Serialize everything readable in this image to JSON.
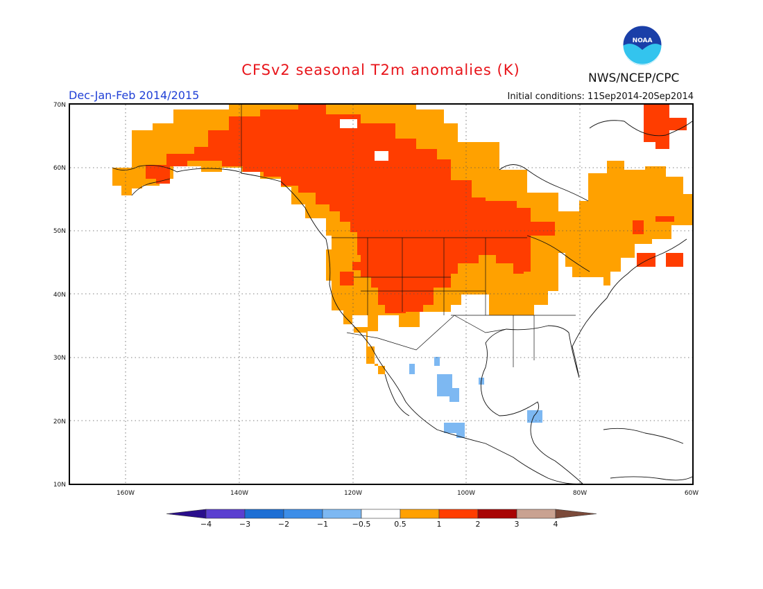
{
  "header": {
    "title": "CFSv2 seasonal T2m anomalies (K)",
    "period": "Dec-Jan-Feb 2014/2015",
    "initial_conditions": "Initial conditions: 11Sep2014-20Sep2014",
    "agency": "NWS/NCEP/CPC",
    "logo_text": "NOAA"
  },
  "map": {
    "lat_labels": [
      "70N",
      "60N",
      "50N",
      "40N",
      "30N",
      "20N",
      "10N"
    ],
    "lon_labels": [
      "160W",
      "140W",
      "120W",
      "100W",
      "80W",
      "60W"
    ]
  },
  "colorbar": {
    "labels": [
      "-4",
      "-3",
      "-2",
      "-1",
      "-0.5",
      "0.5",
      "1",
      "2",
      "3",
      "4"
    ],
    "colors": [
      "#2a0e8c",
      "#5b3fd0",
      "#1d6fd4",
      "#3c8ee8",
      "#7db8f2",
      "#ffffff",
      "#ffa100",
      "#ff3d00",
      "#a80404",
      "#c9a291",
      "#7b4a3a"
    ]
  },
  "colors": {
    "warm_1": "#ffa100",
    "warm_2": "#ff3d00",
    "cool_1": "#7db8f2",
    "title": "#e8141a",
    "period": "#1f3fd6"
  }
}
